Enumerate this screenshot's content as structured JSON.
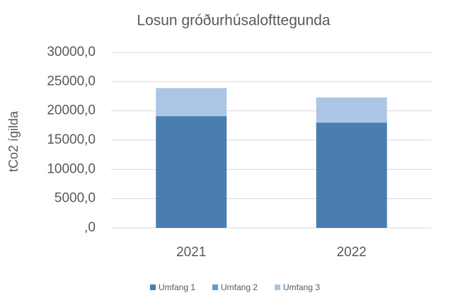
{
  "chart_data": {
    "type": "stacked_bar",
    "title": "Losun gróðurhúsalofttegunda",
    "y_label": "tCo2 ígilda",
    "categories": [
      "2021",
      "2022"
    ],
    "series": [
      {
        "name": "Umfang 1",
        "color": "#4a7eb0",
        "values": [
          19100,
          18000
        ]
      },
      {
        "name": "Umfang 2",
        "color": "#5b9bd5",
        "values": [
          0,
          0
        ]
      },
      {
        "name": "Umfang 3",
        "color": "#adc5e4",
        "values": [
          4800,
          4300
        ]
      }
    ],
    "ylim": [
      0,
      30000
    ],
    "yticks": [
      {
        "value": 0,
        "label": ",0"
      },
      {
        "value": 5000,
        "label": "5000,0"
      },
      {
        "value": 10000,
        "label": "10000,0"
      },
      {
        "value": 15000,
        "label": "15000,0"
      },
      {
        "value": 20000,
        "label": "20000,0"
      },
      {
        "value": 25000,
        "label": "25000,0"
      },
      {
        "value": 30000,
        "label": "30000,0"
      }
    ],
    "grid": true,
    "legend": "bottom"
  }
}
